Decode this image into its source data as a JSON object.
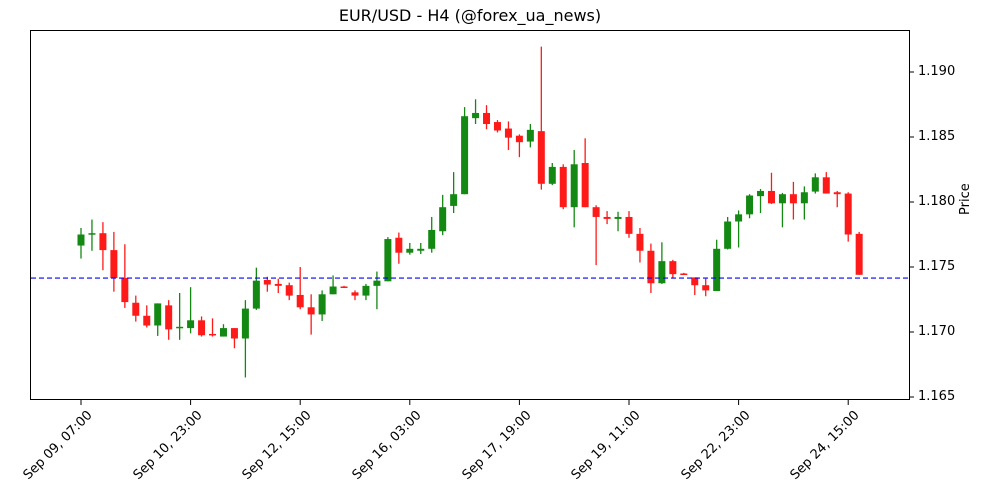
{
  "chart_data": {
    "type": "candlestick",
    "title": "EUR/USD - H4 (@forex_ua_news)",
    "xlabel": "",
    "ylabel": "Price",
    "ylim": [
      1.1648,
      1.193
    ],
    "yticks": [
      "1.165",
      "1.170",
      "1.175",
      "1.180",
      "1.185",
      "1.190"
    ],
    "xticks": [
      {
        "index": 0,
        "label": "Sep 09, 07:00"
      },
      {
        "index": 10,
        "label": "Sep 10, 23:00"
      },
      {
        "index": 20,
        "label": "Sep 12, 15:00"
      },
      {
        "index": 30,
        "label": "Sep 16, 03:00"
      },
      {
        "index": 40,
        "label": "Sep 17, 19:00"
      },
      {
        "index": 50,
        "label": "Sep 19, 11:00"
      },
      {
        "index": 60,
        "label": "Sep 22, 23:00"
      },
      {
        "index": 70,
        "label": "Sep 24, 15:00"
      }
    ],
    "hline": {
      "value": 1.17415,
      "color": "#0000ff",
      "style": "dashed"
    },
    "colors": {
      "up": "#138813",
      "down": "#ff1a1a"
    },
    "grid": false,
    "candles": [
      [
        1.17665,
        1.1775,
        1.178,
        1.17565
      ],
      [
        1.1775,
        1.1776,
        1.17865,
        1.17625
      ],
      [
        1.1776,
        1.1763,
        1.17845,
        1.17475
      ],
      [
        1.1763,
        1.17415,
        1.1777,
        1.1731
      ],
      [
        1.17415,
        1.1723,
        1.17675,
        1.17185
      ],
      [
        1.17225,
        1.17125,
        1.1728,
        1.1708
      ],
      [
        1.17125,
        1.1705,
        1.17205,
        1.17035
      ],
      [
        1.1705,
        1.1722,
        1.1722,
        1.1697
      ],
      [
        1.17205,
        1.1702,
        1.17245,
        1.1694
      ],
      [
        1.1703,
        1.1704,
        1.173,
        1.1694
      ],
      [
        1.1703,
        1.1709,
        1.17345,
        1.1699
      ],
      [
        1.1709,
        1.16975,
        1.1712,
        1.16965
      ],
      [
        1.16985,
        1.1698,
        1.17105,
        1.16965
      ],
      [
        1.16965,
        1.1703,
        1.1706,
        1.16965
      ],
      [
        1.1703,
        1.1695,
        1.1703,
        1.16875
      ],
      [
        1.1695,
        1.1718,
        1.17245,
        1.1665
      ],
      [
        1.1718,
        1.17395,
        1.17495,
        1.1717
      ],
      [
        1.174,
        1.17365,
        1.17425,
        1.1731
      ],
      [
        1.1737,
        1.17355,
        1.1741,
        1.173
      ],
      [
        1.1736,
        1.1728,
        1.1738,
        1.17245
      ],
      [
        1.17285,
        1.1719,
        1.175,
        1.17175
      ],
      [
        1.1719,
        1.17135,
        1.1729,
        1.1698
      ],
      [
        1.17135,
        1.1729,
        1.1732,
        1.17085
      ],
      [
        1.1729,
        1.1735,
        1.17435,
        1.1729
      ],
      [
        1.1735,
        1.17345,
        1.17355,
        1.1734
      ],
      [
        1.17305,
        1.1728,
        1.1732,
        1.17245
      ],
      [
        1.1728,
        1.17355,
        1.1737,
        1.17245
      ],
      [
        1.17355,
        1.17395,
        1.17465,
        1.17175
      ],
      [
        1.1739,
        1.17715,
        1.1773,
        1.1739
      ],
      [
        1.17725,
        1.1761,
        1.17765,
        1.17525
      ],
      [
        1.1761,
        1.1764,
        1.17685,
        1.17595
      ],
      [
        1.17625,
        1.1764,
        1.17685,
        1.176
      ],
      [
        1.1764,
        1.17785,
        1.17885,
        1.1761
      ],
      [
        1.17775,
        1.1796,
        1.18055,
        1.17745
      ],
      [
        1.1797,
        1.1806,
        1.1823,
        1.17915
      ],
      [
        1.1806,
        1.1866,
        1.1873,
        1.1806
      ],
      [
        1.18645,
        1.18685,
        1.1879,
        1.186
      ],
      [
        1.18685,
        1.186,
        1.18745,
        1.1856
      ],
      [
        1.18615,
        1.1855,
        1.1863,
        1.18535
      ],
      [
        1.18565,
        1.18495,
        1.1862,
        1.184
      ],
      [
        1.1851,
        1.1846,
        1.1852,
        1.18345
      ],
      [
        1.18465,
        1.18555,
        1.186,
        1.1842
      ],
      [
        1.18545,
        1.1814,
        1.19195,
        1.18095
      ],
      [
        1.1814,
        1.1827,
        1.183,
        1.1813
      ],
      [
        1.1827,
        1.1796,
        1.1829,
        1.17945
      ],
      [
        1.1796,
        1.1829,
        1.184,
        1.17805
      ],
      [
        1.183,
        1.1796,
        1.1849,
        1.1796
      ],
      [
        1.1796,
        1.17885,
        1.17975,
        1.17515
      ],
      [
        1.17885,
        1.1787,
        1.1793,
        1.1783
      ],
      [
        1.1787,
        1.17885,
        1.17925,
        1.17775
      ],
      [
        1.17885,
        1.17755,
        1.1793,
        1.17725
      ],
      [
        1.17755,
        1.17625,
        1.178,
        1.17535
      ],
      [
        1.17625,
        1.17375,
        1.1768,
        1.173
      ],
      [
        1.17375,
        1.17545,
        1.1769,
        1.1737
      ],
      [
        1.17545,
        1.17445,
        1.17555,
        1.17415
      ],
      [
        1.1745,
        1.17445,
        1.17455,
        1.1744
      ],
      [
        1.1742,
        1.1736,
        1.1742,
        1.17285
      ],
      [
        1.1736,
        1.1732,
        1.1741,
        1.17275
      ],
      [
        1.17315,
        1.1764,
        1.1771,
        1.17315
      ],
      [
        1.1764,
        1.1785,
        1.17885,
        1.17635
      ],
      [
        1.1785,
        1.17905,
        1.17935,
        1.1765
      ],
      [
        1.17905,
        1.1805,
        1.1806,
        1.17875
      ],
      [
        1.18045,
        1.18085,
        1.181,
        1.17915
      ],
      [
        1.18085,
        1.1799,
        1.18225,
        1.17985
      ],
      [
        1.1799,
        1.1806,
        1.1807,
        1.17805
      ],
      [
        1.1806,
        1.1799,
        1.18155,
        1.17865
      ],
      [
        1.1799,
        1.18075,
        1.1812,
        1.17865
      ],
      [
        1.1808,
        1.1819,
        1.1822,
        1.18065
      ],
      [
        1.1819,
        1.18065,
        1.1823,
        1.18065
      ],
      [
        1.18075,
        1.1806,
        1.18085,
        1.1796
      ],
      [
        1.18065,
        1.1775,
        1.18075,
        1.17695
      ],
      [
        1.17755,
        1.1744,
        1.1777,
        1.1744
      ]
    ]
  }
}
